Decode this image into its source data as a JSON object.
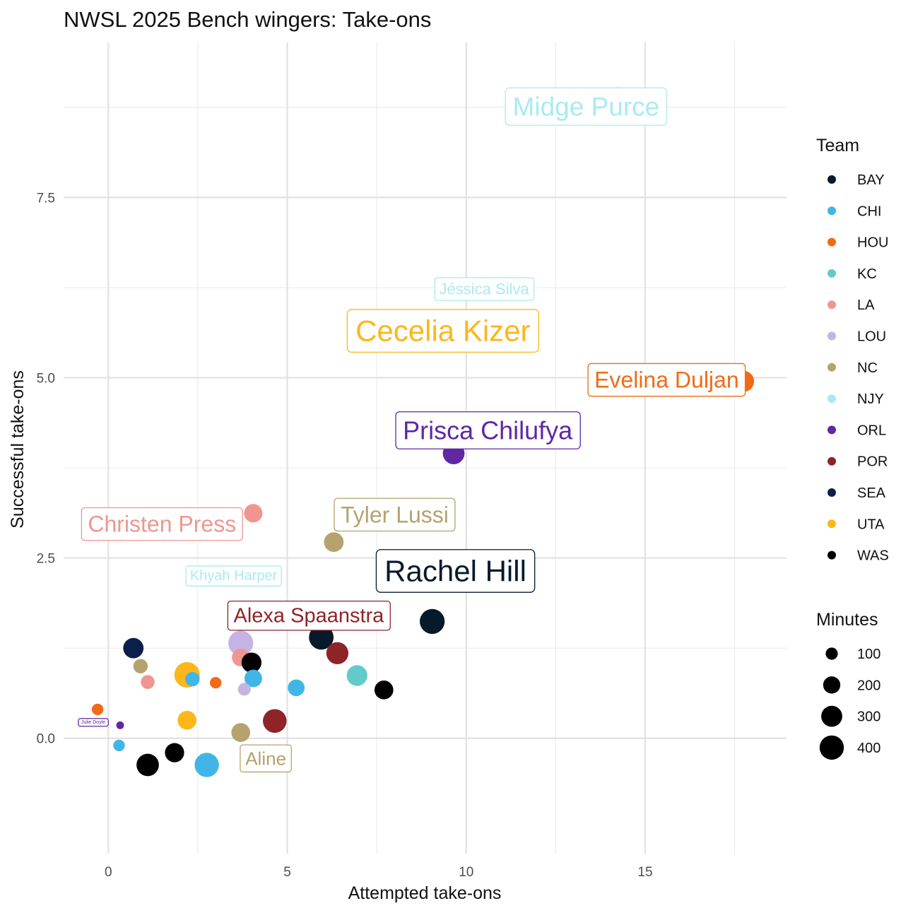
{
  "chart_data": {
    "type": "scatter",
    "title": "NWSL 2025 Bench wingers: Take-ons",
    "xlabel": "Attempted take-ons",
    "ylabel": "Successful take-ons",
    "xlim": [
      -1.25,
      18.95
    ],
    "ylim": [
      -1.6,
      9.65
    ],
    "x_ticks": [
      0,
      5,
      10,
      15
    ],
    "x_tick_labels": [
      "0",
      "5",
      "10",
      "15"
    ],
    "y_ticks": [
      0,
      2.5,
      5,
      7.5
    ],
    "y_tick_labels": [
      "0.0",
      "2.5",
      "5.0",
      "7.5"
    ],
    "legend_team": {
      "title": "Team",
      "items": [
        {
          "name": "BAY",
          "color": "#061A2B"
        },
        {
          "name": "CHI",
          "color": "#41B6E6"
        },
        {
          "name": "HOU",
          "color": "#F26A15"
        },
        {
          "name": "KC",
          "color": "#62CBC9"
        },
        {
          "name": "LA",
          "color": "#EF9690"
        },
        {
          "name": "LOU",
          "color": "#C5B3E3"
        },
        {
          "name": "NC",
          "color": "#B5A26E"
        },
        {
          "name": "NJY",
          "color": "#A9EAF2"
        },
        {
          "name": "ORL",
          "color": "#6027A3"
        },
        {
          "name": "POR",
          "color": "#8E2428"
        },
        {
          "name": "SEA",
          "color": "#0B1F4A"
        },
        {
          "name": "UTA",
          "color": "#FDB71A"
        },
        {
          "name": "WAS",
          "color": "#000000"
        }
      ]
    },
    "legend_minutes": {
      "title": "Minutes",
      "items": [
        {
          "label": "100",
          "value": 100
        },
        {
          "label": "200",
          "value": 200
        },
        {
          "label": "300",
          "value": 300
        },
        {
          "label": "400",
          "value": 400
        }
      ]
    },
    "points": [
      {
        "x": 14.25,
        "y": 8.88,
        "team": "NJY",
        "minutes": 320
      },
      {
        "x": 17.75,
        "y": 4.95,
        "team": "HOU",
        "minutes": 300
      },
      {
        "x": 9.65,
        "y": 3.95,
        "team": "ORL",
        "minutes": 320
      },
      {
        "x": 4.05,
        "y": 3.12,
        "team": "LA",
        "minutes": 230
      },
      {
        "x": 6.3,
        "y": 2.72,
        "team": "NC",
        "minutes": 260
      },
      {
        "x": 9.05,
        "y": 1.62,
        "team": "BAY",
        "minutes": 420
      },
      {
        "x": 5.95,
        "y": 1.4,
        "team": "BAY",
        "minutes": 410
      },
      {
        "x": 3.7,
        "y": 1.32,
        "team": "LOU",
        "minutes": 420
      },
      {
        "x": 0.7,
        "y": 1.25,
        "team": "SEA",
        "minutes": 280
      },
      {
        "x": 6.4,
        "y": 1.18,
        "team": "POR",
        "minutes": 330
      },
      {
        "x": 3.7,
        "y": 1.12,
        "team": "LA",
        "minutes": 210
      },
      {
        "x": 4.0,
        "y": 1.05,
        "team": "WAS",
        "minutes": 270
      },
      {
        "x": 0.9,
        "y": 1.0,
        "team": "NC",
        "minutes": 140
      },
      {
        "x": 2.2,
        "y": 0.88,
        "team": "UTA",
        "minutes": 440
      },
      {
        "x": 6.95,
        "y": 0.87,
        "team": "KC",
        "minutes": 290
      },
      {
        "x": 4.05,
        "y": 0.83,
        "team": "CHI",
        "minutes": 210
      },
      {
        "x": 2.35,
        "y": 0.82,
        "team": "CHI",
        "minutes": 140
      },
      {
        "x": 1.1,
        "y": 0.78,
        "team": "LA",
        "minutes": 130
      },
      {
        "x": 3.0,
        "y": 0.77,
        "team": "HOU",
        "minutes": 90
      },
      {
        "x": 5.25,
        "y": 0.7,
        "team": "CHI",
        "minutes": 190
      },
      {
        "x": 3.8,
        "y": 0.68,
        "team": "LOU",
        "minutes": 110
      },
      {
        "x": 7.7,
        "y": 0.67,
        "team": "WAS",
        "minutes": 240
      },
      {
        "x": -0.3,
        "y": 0.4,
        "team": "HOU",
        "minutes": 90
      },
      {
        "x": 2.2,
        "y": 0.25,
        "team": "UTA",
        "minutes": 240
      },
      {
        "x": 4.65,
        "y": 0.24,
        "team": "POR",
        "minutes": 380
      },
      {
        "x": 0.33,
        "y": 0.18,
        "team": "ORL",
        "minutes": 40
      },
      {
        "x": 3.7,
        "y": 0.08,
        "team": "NC",
        "minutes": 240
      },
      {
        "x": 0.3,
        "y": -0.1,
        "team": "CHI",
        "minutes": 90
      },
      {
        "x": 1.85,
        "y": -0.2,
        "team": "WAS",
        "minutes": 250
      },
      {
        "x": 1.1,
        "y": -0.37,
        "team": "WAS",
        "minutes": 340
      },
      {
        "x": 2.75,
        "y": -0.37,
        "team": "CHI",
        "minutes": 400
      }
    ],
    "labels": [
      {
        "text": "Midge Purce",
        "team": "NJY",
        "x": 13.35,
        "y": 8.76,
        "size": 37
      },
      {
        "text": "Jéssica Silva",
        "team": "NJY",
        "x": 10.5,
        "y": 6.23,
        "size": 22
      },
      {
        "text": "Cecelia Kizer",
        "team": "UTA",
        "x": 9.35,
        "y": 5.65,
        "size": 42
      },
      {
        "text": "Evelina Duljan",
        "team": "HOU",
        "x": 15.6,
        "y": 4.97,
        "size": 32
      },
      {
        "text": "Prisca Chilufya",
        "team": "ORL",
        "x": 10.6,
        "y": 4.27,
        "size": 36
      },
      {
        "text": "Tyler Lussi",
        "team": "NC",
        "x": 8.0,
        "y": 3.1,
        "size": 32
      },
      {
        "text": "Christen Press",
        "team": "LA",
        "x": 1.5,
        "y": 2.97,
        "size": 32
      },
      {
        "text": "Rachel Hill",
        "team": "BAY",
        "x": 9.7,
        "y": 2.32,
        "size": 42
      },
      {
        "text": "Khyah Harper",
        "team": "NJY",
        "x": 3.5,
        "y": 2.25,
        "size": 20
      },
      {
        "text": "Alexa Spaanstra",
        "team": "POR",
        "x": 5.6,
        "y": 1.7,
        "size": 29
      },
      {
        "text": "Julie Doyle",
        "team": "ORL",
        "x": -0.42,
        "y": 0.22,
        "size": 7
      },
      {
        "text": "Aline",
        "team": "NC",
        "x": 4.4,
        "y": -0.28,
        "size": 26
      }
    ]
  }
}
